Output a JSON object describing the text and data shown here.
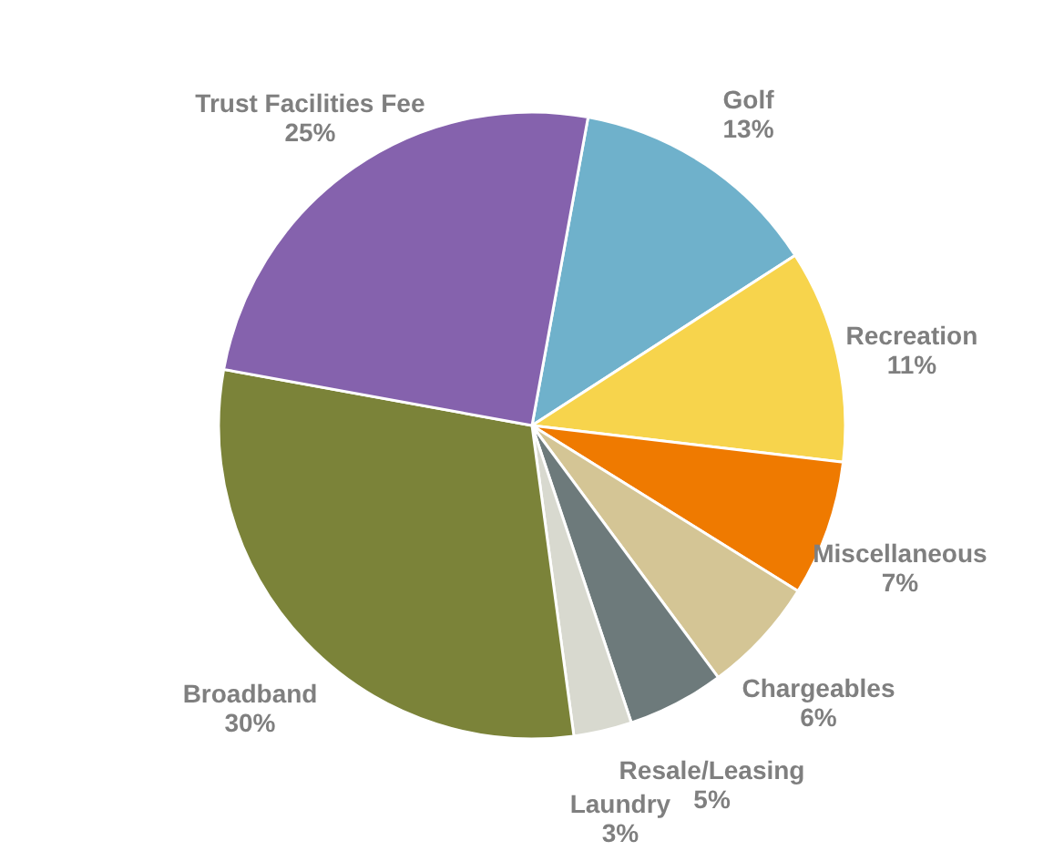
{
  "chart_data": {
    "type": "pie",
    "categories": [
      "Golf",
      "Recreation",
      "Miscellaneous",
      "Chargeables",
      "Resale/Leasing",
      "Laundry",
      "Broadband",
      "Trust Facilities Fee"
    ],
    "values": [
      13,
      11,
      7,
      6,
      5,
      3,
      30,
      25
    ],
    "value_labels": [
      "13%",
      "11%",
      "7%",
      "6%",
      "5%",
      "3%",
      "30%",
      "25%"
    ],
    "colors": [
      "#6fb1cb",
      "#f7d44c",
      "#ef7a00",
      "#d4c595",
      "#6d7a7b",
      "#d8d9cf",
      "#7b8339",
      "#8562ad"
    ],
    "legend": false
  }
}
